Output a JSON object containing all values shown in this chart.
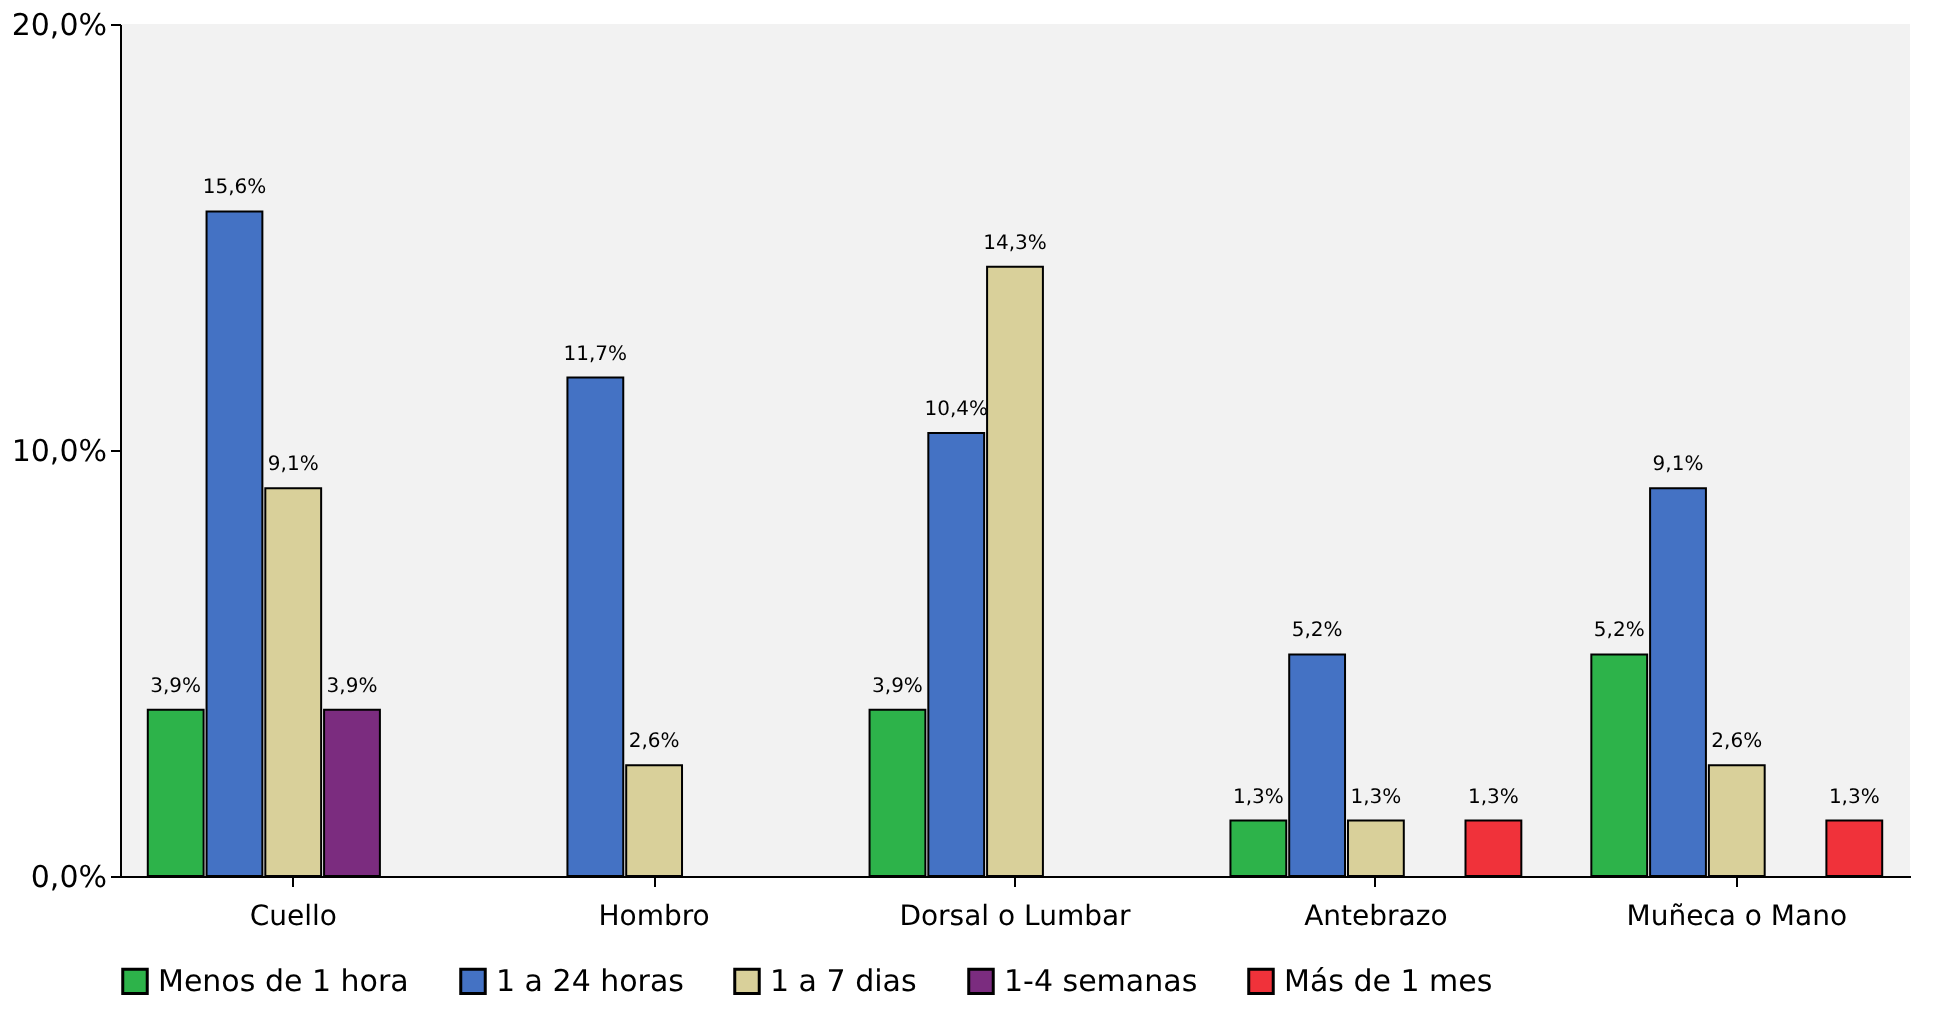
{
  "chart_data": {
    "type": "bar",
    "categories": [
      "Cuello",
      "Hombro",
      "Dorsal o Lumbar",
      "Antebrazo",
      "Muñeca o Mano"
    ],
    "series": [
      {
        "name": "Menos de 1 hora",
        "color": "#2db34a",
        "values": [
          3.9,
          null,
          3.9,
          1.3,
          5.2
        ],
        "value_labels": [
          "3,9%",
          null,
          "3,9%",
          "1,3%",
          "5,2%"
        ]
      },
      {
        "name": "1 a 24 horas",
        "color": "#4472c4",
        "values": [
          15.6,
          11.7,
          10.4,
          5.2,
          9.1
        ],
        "value_labels": [
          "15,6%",
          "11,7%",
          "10,4%",
          "5,2%",
          "9,1%"
        ]
      },
      {
        "name": "1 a 7 dias",
        "color": "#d9d09a",
        "values": [
          9.1,
          2.6,
          14.3,
          1.3,
          2.6
        ],
        "value_labels": [
          "9,1%",
          "2,6%",
          "14,3%",
          "1,3%",
          "2,6%"
        ]
      },
      {
        "name": "1-4 semanas",
        "color": "#7b2c7f",
        "values": [
          3.9,
          null,
          null,
          null,
          null
        ],
        "value_labels": [
          "3,9%",
          null,
          null,
          null,
          null
        ]
      },
      {
        "name": "Más de 1 mes",
        "color": "#f0323a",
        "values": [
          null,
          null,
          null,
          1.3,
          1.3
        ],
        "value_labels": [
          null,
          null,
          null,
          "1,3%",
          "1,3%"
        ]
      }
    ],
    "ylim": [
      0,
      20
    ],
    "yticks": [
      {
        "value": 0,
        "label": "0,0%"
      },
      {
        "value": 10,
        "label": "10,0%"
      },
      {
        "value": 20,
        "label": "20,0%"
      }
    ],
    "grid": false,
    "legend": "bottom"
  }
}
